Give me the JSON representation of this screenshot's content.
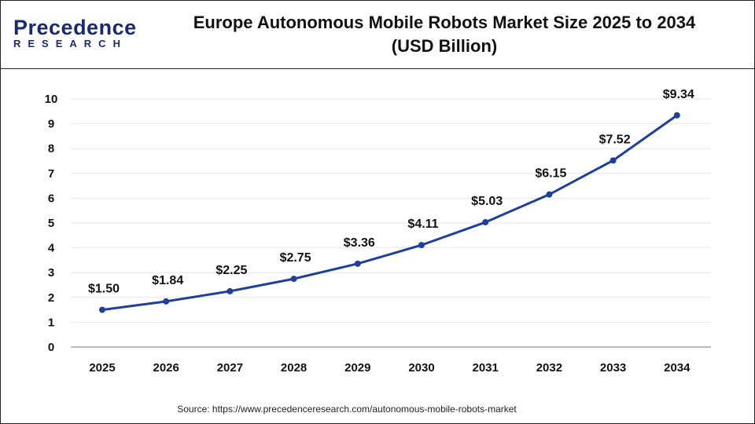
{
  "header": {
    "logo_text": "Precedence",
    "logo_subtext": "RESEARCH",
    "title_line1": "Europe Autonomous Mobile Robots Market Size 2025 to 2034",
    "title_line2": "(USD Billion)"
  },
  "source": "Source: https://www.precedenceresearch.com/autonomous-mobile-robots-market",
  "chart_data": {
    "type": "line",
    "title": "Europe Autonomous Mobile Robots Market Size 2025 to 2034 (USD Billion)",
    "categories": [
      "2025",
      "2026",
      "2027",
      "2028",
      "2029",
      "2030",
      "2031",
      "2032",
      "2033",
      "2034"
    ],
    "values": [
      1.5,
      1.84,
      2.25,
      2.75,
      3.36,
      4.11,
      5.03,
      6.15,
      7.52,
      9.34
    ],
    "data_labels": [
      "$1.50",
      "$1.84",
      "$2.25",
      "$2.75",
      "$3.36",
      "$4.11",
      "$5.03",
      "$6.15",
      "$7.52",
      "$9.34"
    ],
    "yticks": [
      "0",
      "1",
      "2",
      "3",
      "4",
      "5",
      "6",
      "7",
      "8",
      "9",
      "10"
    ],
    "ylim": [
      0,
      10
    ],
    "grid": true,
    "line_color": "#1f3f99"
  }
}
